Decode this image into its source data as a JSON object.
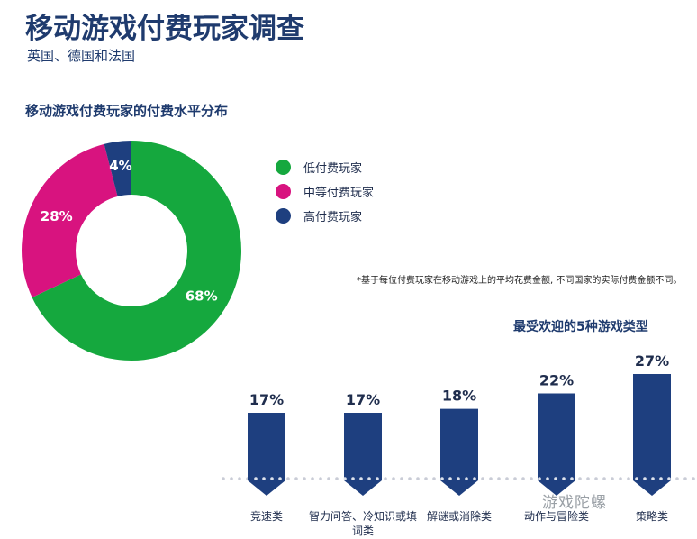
{
  "header": {
    "title": "移动游戏付费玩家调查",
    "subtitle": "英国、德国和法国"
  },
  "donut_section": {
    "title": "移动游戏付费玩家的付费水平分布"
  },
  "footnote": "*基于每位付费玩家在移动游戏上的平均花费金额, 不同国家的实际付费金额不同。",
  "bar_section": {
    "title": "最受欢迎的5种游戏类型"
  },
  "watermark": "游戏陀螺",
  "colors": {
    "navy": "#1e3f7f",
    "green": "#15a83e",
    "magenta": "#d8137f",
    "dots": "#c9ccd6"
  },
  "chart_data": [
    {
      "type": "pie",
      "title": "移动游戏付费玩家的付费水平分布",
      "labels": [
        "低付费玩家",
        "中等付费玩家",
        "高付费玩家"
      ],
      "values": [
        68,
        28,
        4
      ],
      "value_labels": [
        "68%",
        "28%",
        "4%"
      ],
      "colors": [
        "#15a83e",
        "#d8137f",
        "#1e3f7f"
      ],
      "donut": true,
      "legend": "right"
    },
    {
      "type": "bar",
      "title": "最受欢迎的5种游戏类型",
      "categories": [
        "竞速类",
        "智力问答、冷知识或填词类",
        "解谜或消除类",
        "动作与冒险类",
        "策略类"
      ],
      "category_lines": [
        [
          "竞速类"
        ],
        [
          "智力问答、冷知识或填",
          "词类"
        ],
        [
          "解谜或消除类"
        ],
        [
          "动作与冒险类"
        ],
        [
          "策略类"
        ]
      ],
      "values": [
        17,
        17,
        18,
        22,
        27
      ],
      "value_labels": [
        "17%",
        "17%",
        "18%",
        "22%",
        "27%"
      ],
      "color": "#1e3f7f",
      "xlabel": "",
      "ylabel": ""
    }
  ]
}
